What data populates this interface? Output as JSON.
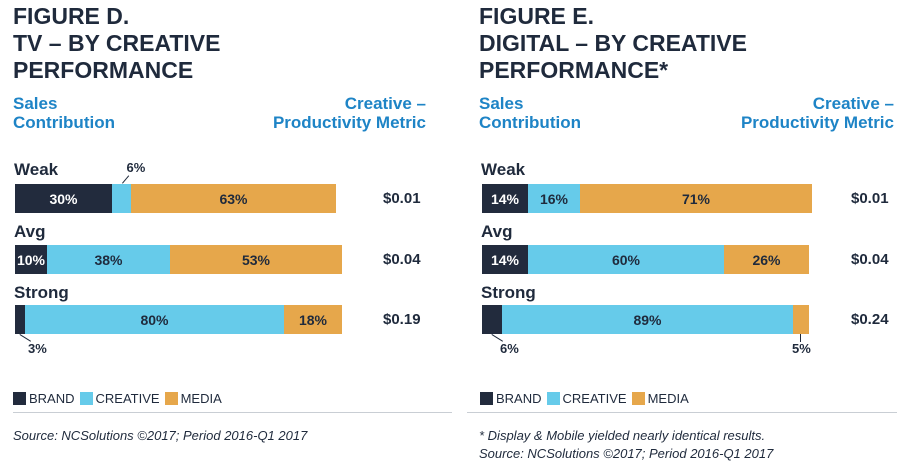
{
  "colors": {
    "brand": "#222b3d",
    "creative": "#66cbea",
    "media": "#e6a74b",
    "title": "#1f2a3c",
    "header_blue": "#1e84c6"
  },
  "legend": [
    {
      "key": "brand",
      "label": "BRAND"
    },
    {
      "key": "creative",
      "label": "CREATIVE"
    },
    {
      "key": "media",
      "label": "MEDIA"
    }
  ],
  "chart_data": [
    {
      "type": "bar",
      "orientation": "horizontal-stacked",
      "title_lines": [
        "FIGURE D.",
        "TV – BY CREATIVE",
        "PERFORMANCE"
      ],
      "left_header": [
        "Sales",
        "Contribution"
      ],
      "right_header": [
        "Creative –",
        "Productivity Metric"
      ],
      "categories": [
        "Weak",
        "Avg",
        "Strong"
      ],
      "series": [
        {
          "name": "BRAND",
          "values": [
            30,
            10,
            3
          ]
        },
        {
          "name": "CREATIVE",
          "values": [
            6,
            38,
            80
          ]
        },
        {
          "name": "MEDIA",
          "values": [
            63,
            53,
            18
          ]
        }
      ],
      "segment_labels": [
        [
          "30%",
          "6%",
          "63%"
        ],
        [
          "10%",
          "38%",
          "53%"
        ],
        [
          "3%",
          "80%",
          "18%"
        ]
      ],
      "metric_values": [
        "$0.01",
        "$0.04",
        "$0.19"
      ],
      "source": [
        "Source: NCSolutions ©2017;  Period 2016-Q1 2017"
      ]
    },
    {
      "type": "bar",
      "orientation": "horizontal-stacked",
      "title_lines": [
        "FIGURE E.",
        "DIGITAL – BY CREATIVE",
        "PERFORMANCE*"
      ],
      "left_header": [
        "Sales",
        "Contribution"
      ],
      "right_header": [
        "Creative –",
        "Productivity Metric"
      ],
      "categories": [
        "Weak",
        "Avg",
        "Strong"
      ],
      "series": [
        {
          "name": "BRAND",
          "values": [
            14,
            14,
            6
          ]
        },
        {
          "name": "CREATIVE",
          "values": [
            16,
            60,
            89
          ]
        },
        {
          "name": "MEDIA",
          "values": [
            71,
            26,
            5
          ]
        }
      ],
      "segment_labels": [
        [
          "14%",
          "16%",
          "71%"
        ],
        [
          "14%",
          "60%",
          "26%"
        ],
        [
          "6%",
          "89%",
          "5%"
        ]
      ],
      "metric_values": [
        "$0.01",
        "$0.04",
        "$0.24"
      ],
      "source": [
        "* Display & Mobile yielded nearly identical results.",
        "Source: NCSolutions ©2017;  Period 2016-Q1 2017"
      ]
    }
  ]
}
